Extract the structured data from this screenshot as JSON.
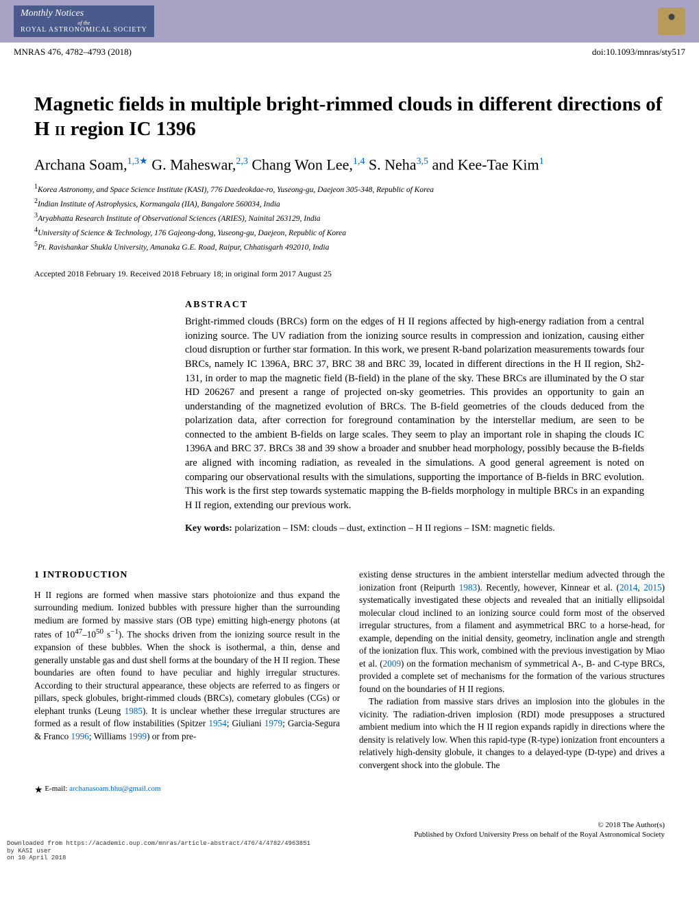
{
  "header": {
    "journal_top": "Monthly Notices",
    "journal_mid": "of the",
    "journal_bot": "ROYAL ASTRONOMICAL SOCIETY",
    "mnras_ref": "MNRAS 476, 4782–4793 (2018)",
    "doi": "doi:10.1093/mnras/sty517"
  },
  "title": "Magnetic fields in multiple bright-rimmed clouds in different directions of H II region IC 1396",
  "authors_html": "Archana Soam,",
  "author_segments": {
    "a1_name": "Archana Soam,",
    "a1_sup": "1,3",
    "a2_name": " G. Maheswar,",
    "a2_sup": "2,3",
    "a3_name": " Chang Won Lee,",
    "a3_sup": "1,4",
    "a4_name": " S. Neha",
    "a4_sup": "3,5",
    "a5_name": " and Kee-Tae Kim",
    "a5_sup": "1"
  },
  "affiliations": {
    "l1": "Korea Astronomy, and Space Science Institute (KASI), 776 Daedeokdae-ro, Yuseong-gu, Daejeon 305-348, Republic of Korea",
    "l2": "Indian Institute of Astrophysics, Kormangala (IIA), Bangalore 560034, India",
    "l3": "Aryabhatta Research Institute of Observational Sciences (ARIES), Nainital 263129, India",
    "l4": "University of Science & Technology, 176 Gajeong-dong, Yuseong-gu, Daejeon, Republic of Korea",
    "l5": "Pt. Ravishankar Shukla University, Amanaka G.E. Road, Raipur, Chhatisgarh 492010, India"
  },
  "dates": "Accepted 2018 February 19. Received 2018 February 18; in original form 2017 August 25",
  "abstract_label": "ABSTRACT",
  "abstract": "Bright-rimmed clouds (BRCs) form on the edges of H II regions affected by high-energy radiation from a central ionizing source. The UV radiation from the ionizing source results in compression and ionization, causing either cloud disruption or further star formation. In this work, we present R-band polarization measurements towards four BRCs, namely IC 1396A, BRC  37, BRC 38 and BRC 39, located in different directions in the H II region, Sh2-131, in order to map the magnetic field (B-field) in the plane of the sky. These BRCs are illuminated by the O star HD 206267 and present a range of projected on-sky geometries. This provides an opportunity to gain an understanding of the magnetized evolution of BRCs. The B-field geometries of the clouds deduced from the polarization data, after correction for foreground contamination by the interstellar medium, are seen to be connected to the ambient B-fields on large scales. They seem to play an important role in shaping the clouds IC 1396A and BRC 37. BRCs 38 and 39 show a broader and snubber head morphology, possibly because the B-fields are aligned with incoming radiation, as revealed in the simulations. A good general agreement is noted on comparing our observational results with the simulations, supporting the importance of B-fields in BRC evolution. This work is the first step towards systematic mapping the B-fields morphology in multiple BRCs in an expanding H II region, extending our previous work.",
  "keywords_label": "Key words:",
  "keywords": "  polarization – ISM: clouds – dust, extinction – H II regions – ISM: magnetic fields.",
  "section1_heading": "1 INTRODUCTION",
  "col_left_p1a": "H II regions are formed when massive stars photoionize and thus expand the surrounding medium. Ionized bubbles with pressure higher than the surrounding medium are formed by massive stars (OB type) emitting high-energy photons (at rates of 10",
  "col_left_p1b": "47",
  "col_left_p1c": "–10",
  "col_left_p1d": "50",
  "col_left_p1e": " s",
  "col_left_p1f": "−1",
  "col_left_p1g": "). The shocks driven from the ionizing source result in the expansion of these bubbles. When the shock is isothermal, a thin, dense and generally unstable gas and dust shell forms at the boundary of the H II region. These boundaries are often found to have peculiar and highly irregular structures. According to their structural appearance, these objects are referred to as fingers or pillars, speck globules, bright-rimmed clouds (BRCs), cometary globules (CGs) or elephant trunks (Leung ",
  "ref_1985": "1985",
  "col_left_p1h": "). It is unclear whether these irregular structures are formed as a result of flow instabilities (Spitzer ",
  "ref_1954": "1954",
  "col_left_p1i": "; Giuliani ",
  "ref_1979": "1979",
  "col_left_p1j": "; Garcia-Segura & Franco ",
  "ref_1996": "1996",
  "col_left_p1k": "; Williams ",
  "ref_1999": "1999",
  "col_left_p1l": ") or from pre-",
  "col_right_p1a": "existing dense structures in the ambient interstellar medium advected through the ionization front (Reipurth ",
  "ref_1983": "1983",
  "col_right_p1b": "). Recently, however, Kinnear et al. (",
  "ref_2014": "2014",
  "col_right_p1c": ", ",
  "ref_2015": "2015",
  "col_right_p1d": ") systematically investigated these objects and revealed that an initially ellipsoidal molecular cloud inclined to an ionizing source could form most of the observed irregular structures, from a filament and asymmetrical BRC to a horse-head, for example, depending on the initial density, geometry, inclination angle and strength of the ionization flux. This work, combined with the previous investigation by Miao et al. (",
  "ref_2009": "2009",
  "col_right_p1e": ") on the formation mechanism of symmetrical A-, B- and C-type BRCs, provided a complete set of mechanisms for the formation of the various structures found on the boundaries of H II regions.",
  "col_right_p2": "The radiation from massive stars drives an implosion into the globules in the vicinity. The radiation-driven implosion (RDI) mode presupposes a structured ambient medium into which the H II region expands rapidly in directions where the density is relatively low. When this rapid-type (R-type) ionization front encounters a relatively high-density globule, it changes to a delayed-type (D-type) and drives a convergent shock into the globule. The",
  "footnote_star": "★",
  "footnote_label": " E-mail: ",
  "footnote_email": "archanasoam.bhu@gmail.com",
  "copyright": "© 2018 The Author(s)",
  "pub_left_l1": "Downloaded from https://academic.oup.com/mnras/article-abstract/476/4/4782/4963851",
  "pub_left_l2": "by KASI user",
  "pub_left_l3": "on 10 April 2018",
  "pub_right": "Published by Oxford University Press on behalf of the Royal Astronomical Society",
  "colors": {
    "header_bg": "#a8a3c4",
    "journal_box_bg": "#4a5a8a",
    "link": "#0066cc",
    "logo": "#b89a5a"
  }
}
